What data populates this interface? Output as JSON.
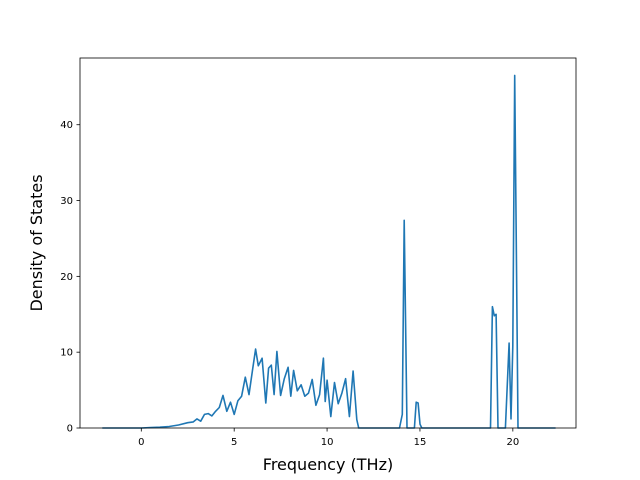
{
  "chart_data": {
    "type": "line",
    "xlabel": "Frequency (THz)",
    "ylabel": "Density of States",
    "title": "",
    "xlim": [
      -3.3,
      23.4
    ],
    "ylim": [
      0,
      48.8
    ],
    "xticks": [
      0,
      5,
      10,
      15,
      20
    ],
    "yticks": [
      0,
      10,
      20,
      30,
      40
    ],
    "grid": false,
    "line_color": "#1f77b4",
    "series": [
      {
        "x": [
          -2.1,
          -1.5,
          -1.0,
          -0.5,
          0.0,
          0.5,
          1.0,
          1.5,
          2.0,
          2.5,
          2.8,
          3.0,
          3.2,
          3.4,
          3.6,
          3.8,
          4.0,
          4.2,
          4.4,
          4.6,
          4.8,
          5.0,
          5.2,
          5.4,
          5.6,
          5.8,
          6.0,
          6.15,
          6.3,
          6.5,
          6.7,
          6.85,
          7.0,
          7.15,
          7.3,
          7.5,
          7.7,
          7.9,
          8.05,
          8.2,
          8.4,
          8.6,
          8.8,
          9.0,
          9.2,
          9.4,
          9.6,
          9.8,
          9.9,
          10.0,
          10.2,
          10.4,
          10.6,
          10.8,
          11.0,
          11.2,
          11.4,
          11.6,
          11.7,
          11.8,
          12.0,
          13.0,
          13.9,
          14.05,
          14.15,
          14.3,
          14.5,
          14.7,
          14.8,
          14.9,
          15.0,
          15.1,
          16.0,
          17.0,
          18.0,
          18.8,
          18.9,
          19.0,
          19.1,
          19.2,
          19.3,
          19.6,
          19.8,
          19.9,
          20.0,
          20.1,
          20.2,
          20.28,
          20.35,
          20.45,
          21.0,
          22.3
        ],
        "y": [
          0,
          0,
          0,
          0,
          0,
          0.05,
          0.1,
          0.2,
          0.4,
          0.7,
          0.8,
          1.2,
          0.9,
          1.8,
          1.9,
          1.6,
          2.2,
          2.7,
          4.3,
          2.2,
          3.4,
          1.8,
          3.6,
          4.2,
          6.7,
          4.4,
          7.9,
          10.4,
          8.2,
          9.2,
          3.3,
          7.9,
          8.3,
          4.4,
          10.1,
          4.3,
          6.5,
          8.0,
          4.2,
          7.6,
          4.9,
          5.7,
          4.2,
          4.6,
          6.4,
          3.0,
          4.4,
          9.2,
          3.5,
          6.3,
          1.5,
          6.0,
          3.2,
          4.6,
          6.5,
          1.5,
          7.5,
          1.1,
          0,
          0,
          0,
          0,
          0,
          1.8,
          27.4,
          0,
          0,
          0,
          3.4,
          3.3,
          0.5,
          0,
          0,
          0,
          0,
          0,
          16.0,
          14.8,
          15.0,
          0,
          0,
          0,
          11.2,
          1.2,
          10.8,
          46.5,
          20.0,
          0,
          0,
          0,
          0,
          0
        ]
      }
    ]
  }
}
